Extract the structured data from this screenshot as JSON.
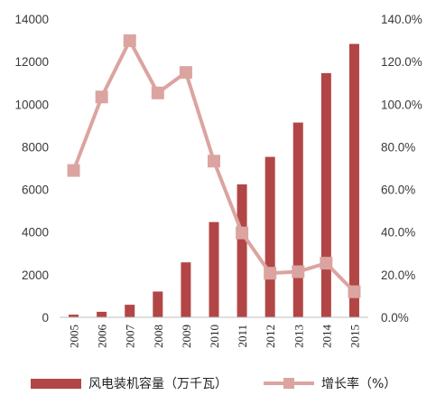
{
  "chart_data": {
    "type": "bar",
    "categories": [
      "2005",
      "2006",
      "2007",
      "2008",
      "2009",
      "2010",
      "2011",
      "2012",
      "2013",
      "2014",
      "2015"
    ],
    "series": [
      {
        "name": "风电装机容量（万千瓦）",
        "type": "bar",
        "axis": "left",
        "color": "#b24646",
        "values": [
          126,
          259,
          590,
          1210,
          2580,
          4470,
          6240,
          7530,
          9140,
          11460,
          12830
        ]
      },
      {
        "name": "增长率（%）",
        "type": "line",
        "axis": "right",
        "color": "#dba4a0",
        "values": [
          68.9,
          103.4,
          129.8,
          105.3,
          114.9,
          73.3,
          39.6,
          20.7,
          21.4,
          25.4,
          12.0
        ]
      }
    ],
    "y_left": {
      "ylim": [
        0,
        14000
      ],
      "ticks": [
        "0",
        "2000",
        "4000",
        "6000",
        "8000",
        "10000",
        "12000",
        "14000"
      ]
    },
    "y_right": {
      "ylim": [
        0,
        140
      ],
      "ticks": [
        "0.0%",
        "20.0%",
        "40.0%",
        "60.0%",
        "80.0%",
        "100.0%",
        "120.0%",
        "140.0%"
      ]
    },
    "grid": false,
    "legend_position": "bottom"
  },
  "legend": {
    "bar_label": "风电装机容量（万千瓦）",
    "line_label": "增长率（%）"
  }
}
